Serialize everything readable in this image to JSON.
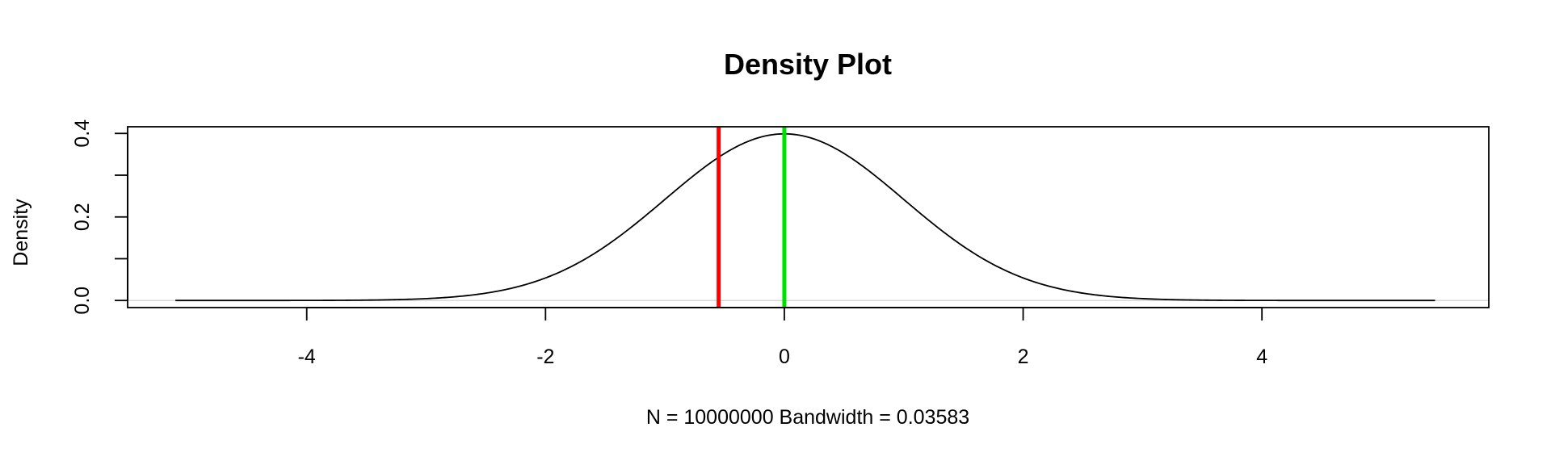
{
  "chart_data": {
    "type": "line",
    "title": "Density Plot",
    "xlabel": "N = 10000000   Bandwidth = 0.03583",
    "ylabel": "Density",
    "xlim": [
      -5.5,
      5.9
    ],
    "ylim": [
      -0.017,
      0.416
    ],
    "x_ticks": [
      -4,
      -2,
      0,
      2,
      4
    ],
    "x_tick_labels": [
      "-4",
      "-2",
      "0",
      "2",
      "4"
    ],
    "y_ticks": [
      0.0,
      0.1,
      0.2,
      0.3,
      0.4
    ],
    "y_tick_labels": [
      "0.0",
      "",
      "0.2",
      "",
      "0.4"
    ],
    "series": [
      {
        "color": "#000000",
        "x_range": [
          -5.1,
          5.45
        ],
        "distribution": "standard-normal"
      }
    ],
    "vlines": [
      {
        "x": -0.55,
        "color": "#ff0000"
      },
      {
        "x": 0.0,
        "color": "#00e000"
      }
    ],
    "zero_line_color": "#d9d9d9",
    "grid": false,
    "legend": "none"
  }
}
